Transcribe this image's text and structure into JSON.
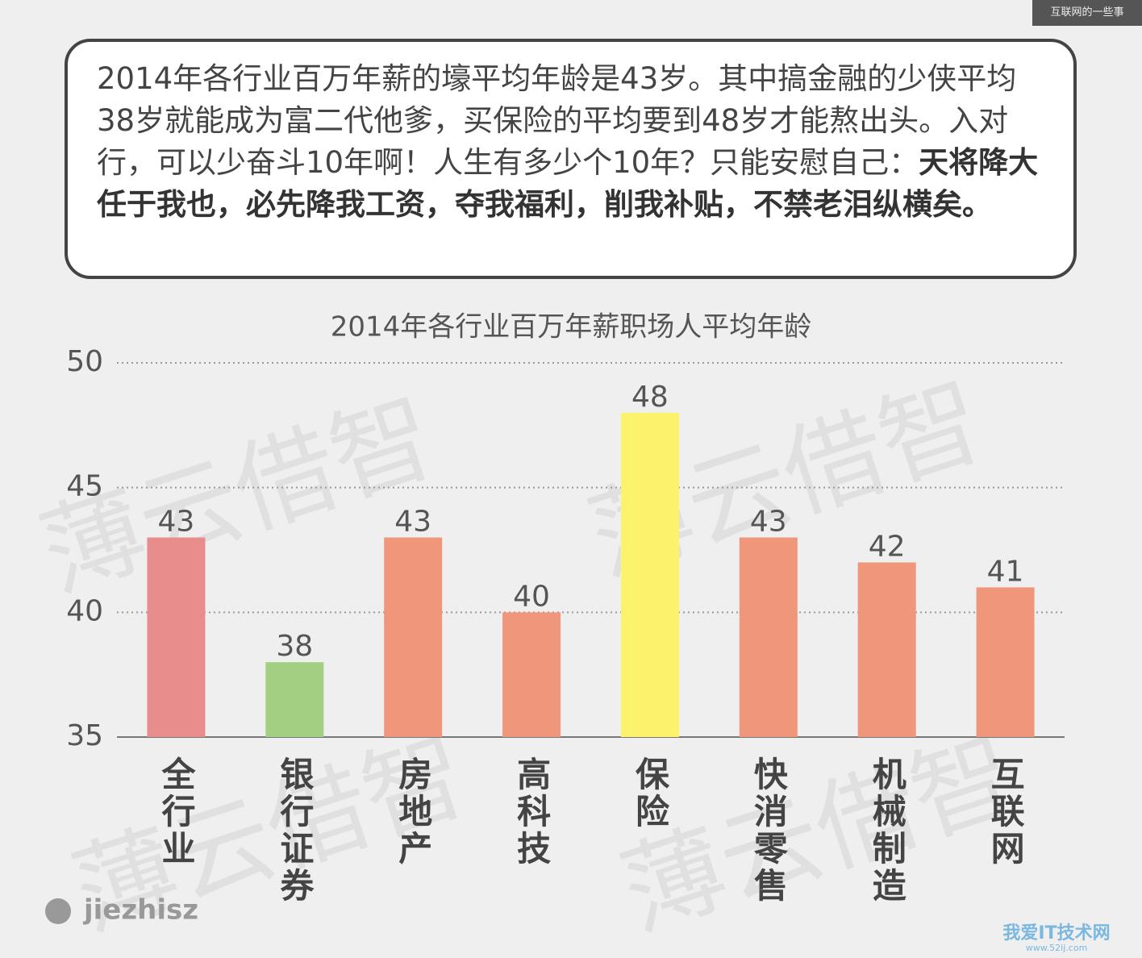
{
  "header": {
    "corner_label": "互联网的一些事"
  },
  "callout": {
    "text": "2014年各行业百万年薪的壕平均年龄是43岁。其中搞金融的少侠平均38岁就能成为富二代他爹，买保险的平均要到48岁才能熬出头。入对行，可以少奋斗10年啊！人生有多少个10年？只能安慰自己：",
    "bold_text": "天将降大任于我也，必先降我工资，夺我福利，削我补贴，不禁老泪纵横矣。"
  },
  "chart_data": {
    "type": "bar",
    "title": "2014年各行业百万年薪职场人平均年龄",
    "categories": [
      "全行业",
      "银行证券",
      "房地产",
      "高科技",
      "保险",
      "快消零售",
      "机械制造",
      "互联网"
    ],
    "values": [
      43,
      38,
      43,
      40,
      48,
      43,
      42,
      41
    ],
    "colors": [
      "#e88c8c",
      "#a3cf82",
      "#f0967a",
      "#f0967a",
      "#fdf26b",
      "#f0967a",
      "#f0967a",
      "#f0967a"
    ],
    "ylim": [
      35,
      50
    ],
    "yticks": [
      35,
      40,
      45,
      50
    ],
    "grid": true
  },
  "watermark": "薄云借智",
  "account": "jiezhisz",
  "logo": {
    "name": "我爱IT技术网",
    "url": "www.52ij.com"
  }
}
